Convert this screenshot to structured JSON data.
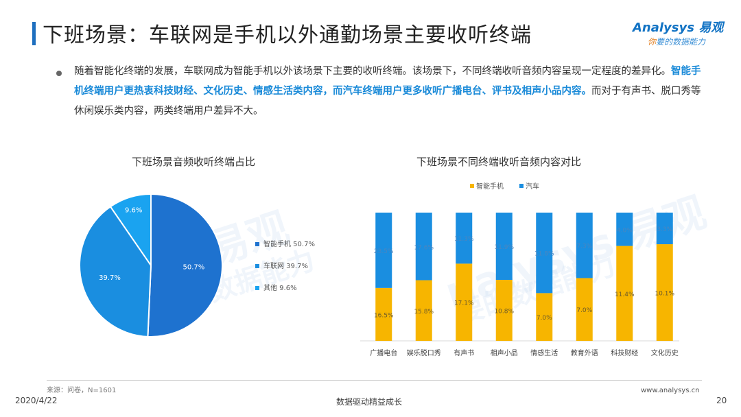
{
  "header": {
    "title": "下班场景：车联网是手机以外通勤场景主要收听终端",
    "logo_brand": "Analysys 易观",
    "logo_slogan_ni": "你",
    "logo_slogan_rest": "要的数据能力"
  },
  "description": {
    "part1": "随着智能化终端的发展，车联网成为智能手机以外该场景下主要的收听终端。该场景下，不同终端收听音频内容呈现一定程度的差异化。",
    "highlight": "智能手机终端用户更热衷科技财经、文化历史、情感生活类内容，而汽车终端用户更多收听广播电台、评书及相声小品内容。",
    "part2": "而对于有声书、脱口秀等休闲娱乐类内容，两类终端用户差异不大。"
  },
  "watermark": {
    "pie": "易观",
    "pie_sub": "数据能力",
    "bar": "nalysys 易观",
    "bar_sub": "要的数据能力"
  },
  "pie_title": "下班场景音频收听终端占比",
  "bar_title": "下班场景不同终端收听音频内容对比",
  "chart_data": [
    {
      "type": "pie",
      "title": "下班场景音频收听终端占比",
      "labels": [
        "智能手机",
        "车联网",
        "其他"
      ],
      "values": [
        50.7,
        39.7,
        9.6
      ],
      "value_labels": [
        "50.7%",
        "39.7%",
        "9.6%"
      ],
      "legend_labels": [
        "智能手机 50.7%",
        "车联网 39.7%",
        "其他 9.6%"
      ],
      "colors": [
        "#1e72cf",
        "#1a8ee0",
        "#1aa3f0"
      ],
      "legend": "right"
    },
    {
      "type": "bar",
      "stacked": true,
      "title": "下班场景不同终端收听音频内容对比",
      "categories": [
        "广播电台",
        "娱乐脱口秀",
        "有声书",
        "相声小品",
        "情感生活",
        "教育外语",
        "科技财经",
        "文化历史"
      ],
      "series": [
        {
          "name": "智能手机",
          "color": "#f7b500",
          "values": [
            16.5,
            15.8,
            17.1,
            10.8,
            7.0,
            7.0,
            11.4,
            10.1
          ],
          "labels": [
            "16.5%",
            "15.8%",
            "17.1%",
            "10.8%",
            "7.0%",
            "7.0%",
            "11.4%",
            "10.1%"
          ]
        },
        {
          "name": "汽车",
          "color": "#1a8ee0",
          "values": [
            23.5,
            17.6,
            11.3,
            11.9,
            11.8,
            7.3,
            4.0,
            3.3
          ],
          "labels": [
            "23.5%",
            "17.6%",
            "11.3%",
            "11.9%",
            "11.8%",
            "7.3%",
            "4.0%",
            "3.3%"
          ]
        }
      ],
      "legend": "top",
      "normalized": true
    }
  ],
  "footer": {
    "source": "来源：问卷，N=1601",
    "date": "2020/4/22",
    "center": "数据驱动精益成长",
    "url": "www.analysys.cn",
    "page": "20"
  }
}
